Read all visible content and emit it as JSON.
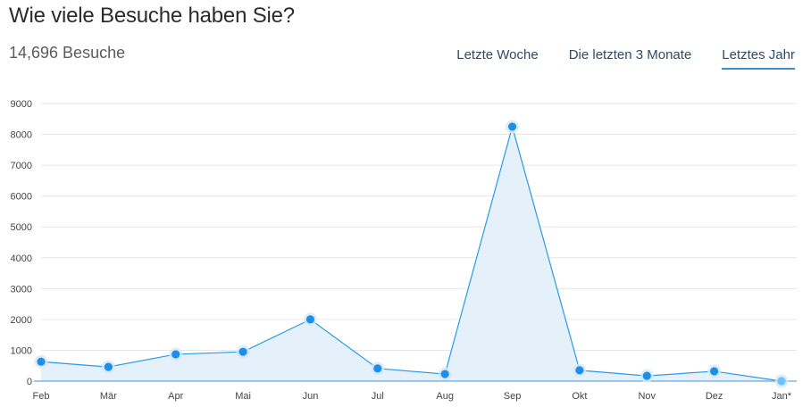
{
  "header": {
    "title": "Wie viele Besuche haben Sie?",
    "total": "14,696 Besuche"
  },
  "tabs": [
    {
      "label": "Letzte Woche",
      "active": false
    },
    {
      "label": "Die letzten 3 Monate",
      "active": false
    },
    {
      "label": "Letztes Jahr",
      "active": true
    }
  ],
  "colors": {
    "line": "#2a9ae6",
    "point": "#1e8fe8",
    "point_last": "#6cc0ff",
    "area": "#e4f1fb",
    "grid": "#e6e6e6",
    "axis": "#4a90d9",
    "tab_underline": "#3b8fd8"
  },
  "chart_data": {
    "type": "area",
    "categories": [
      "Feb",
      "Mär",
      "Apr",
      "Mai",
      "Jun",
      "Jul",
      "Aug",
      "Sep",
      "Okt",
      "Nov",
      "Dez",
      "Jan*"
    ],
    "values": [
      630,
      460,
      870,
      950,
      2000,
      410,
      230,
      8250,
      350,
      170,
      320,
      0
    ],
    "y_ticks": [
      0,
      1000,
      2000,
      3000,
      4000,
      5000,
      6000,
      7000,
      8000,
      9000
    ],
    "ylim": [
      0,
      9000
    ],
    "grid": true,
    "legend": "none"
  }
}
